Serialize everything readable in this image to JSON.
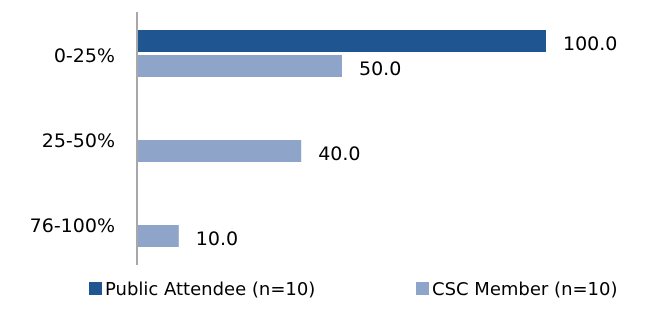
{
  "chart_data": {
    "type": "bar",
    "orientation": "horizontal",
    "categories": [
      "0-25%",
      "25-50%",
      "76-100%"
    ],
    "series": [
      {
        "name": "Public Attendee (n=10)",
        "color": "#1f5591",
        "values": [
          100.0,
          null,
          null
        ]
      },
      {
        "name": "CSC Member (n=10)",
        "color": "#8ea4c8",
        "values": [
          50.0,
          40.0,
          10.0
        ]
      }
    ],
    "data_labels": [
      [
        "100.0",
        "",
        ""
      ],
      [
        "50.0",
        "40.0",
        "10.0"
      ]
    ],
    "xlim": [
      0,
      100
    ],
    "grid": false,
    "x_axis_visible": false,
    "legend_position": "bottom"
  }
}
